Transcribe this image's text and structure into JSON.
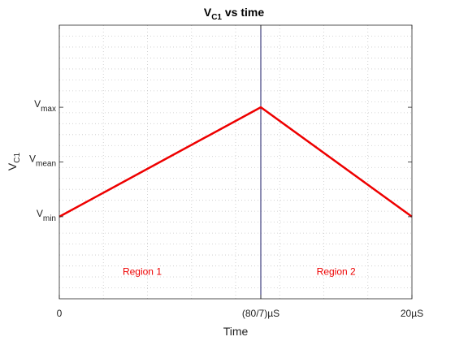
{
  "chart_data": {
    "type": "line",
    "title": {
      "main": "V",
      "sub": "C1",
      "rest": " vs time"
    },
    "xlabel": "Time",
    "ylabel": {
      "main": "V",
      "sub": "C1"
    },
    "xlim": [
      0,
      20
    ],
    "ylim": [
      -1.5,
      3.5
    ],
    "x_ticks": [
      {
        "value": 0,
        "label": "0"
      },
      {
        "value": 11.428571,
        "label": "(80/7)µS"
      },
      {
        "value": 20,
        "label": "20µS"
      }
    ],
    "y_ticks": [
      {
        "value": 2,
        "main": "V",
        "sub": "max"
      },
      {
        "value": 1,
        "main": "V",
        "sub": "mean"
      },
      {
        "value": 0,
        "main": "V",
        "sub": "min"
      }
    ],
    "minor_grid": {
      "x_step": 2.5,
      "y_step": 0.2
    },
    "grid": "minor-dotted",
    "series": [
      {
        "x": [
          0,
          11.428571,
          20
        ],
        "y": [
          0,
          2,
          0
        ],
        "color": "#ee0000"
      }
    ],
    "vline": {
      "x": 11.428571,
      "color": "#1a1a66"
    },
    "annotations": [
      {
        "text": "Region 1",
        "x": 4.7,
        "y": -1.0,
        "color": "#ee0000"
      },
      {
        "text": "Region 2",
        "x": 15.7,
        "y": -1.0,
        "color": "#ee0000"
      }
    ]
  }
}
